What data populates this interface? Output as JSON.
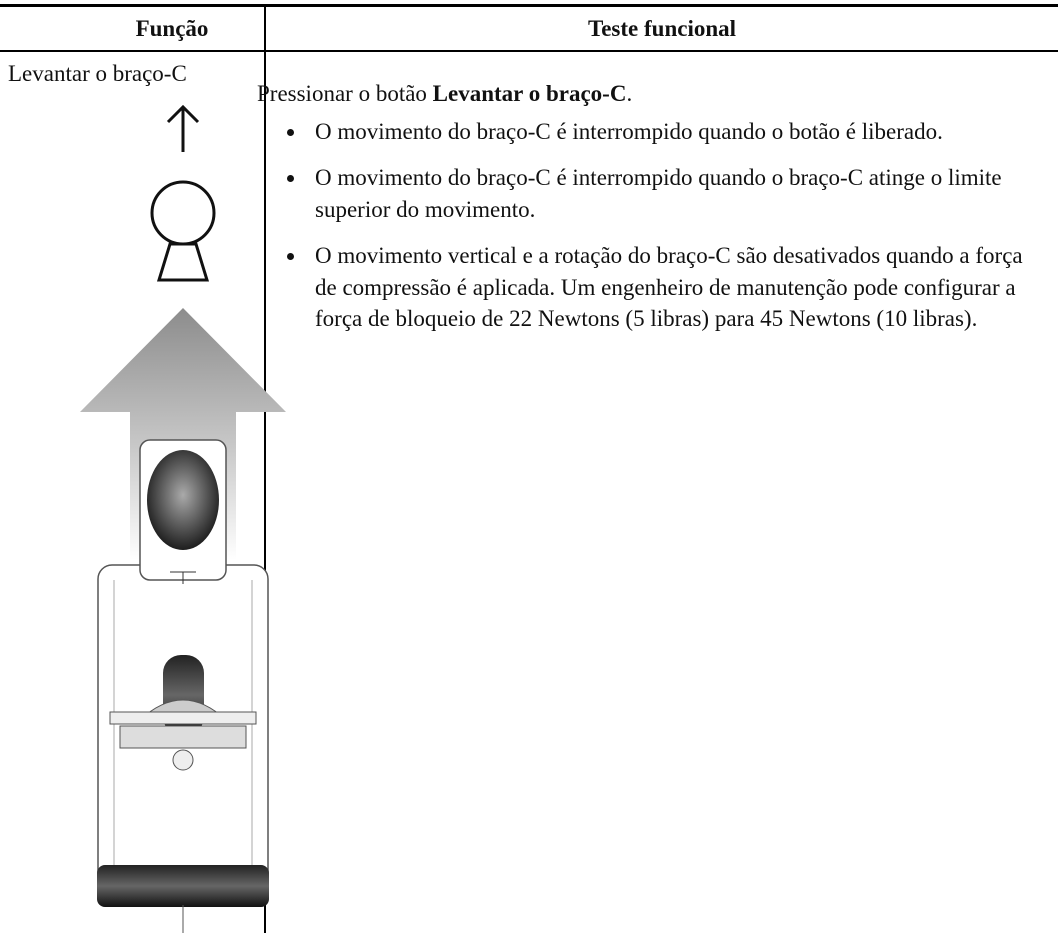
{
  "table": {
    "header": [
      "Função",
      "Teste funcional"
    ],
    "rows": [
      {
        "function": "Levantar o braço-C",
        "test": {
          "intro": [
            "Pressionar o botão ",
            "Levantar o braço-C",
            "."
          ],
          "bullets": [
            "O movimento do braço-C é interrompido quando o botão é liberado.",
            "O movimento do braço-C é interrompido quando o braço-C atinge o limite superior do movimento.",
            "O movimento vertical e a rotação do braço-C são desativados quando a força de compressão é aplicada. Um engenheiro de manutenção pode configurar a força de bloqueio de 22 Newtons (5 libras) para 45 Newtons (10 libras)."
          ]
        }
      }
    ]
  }
}
